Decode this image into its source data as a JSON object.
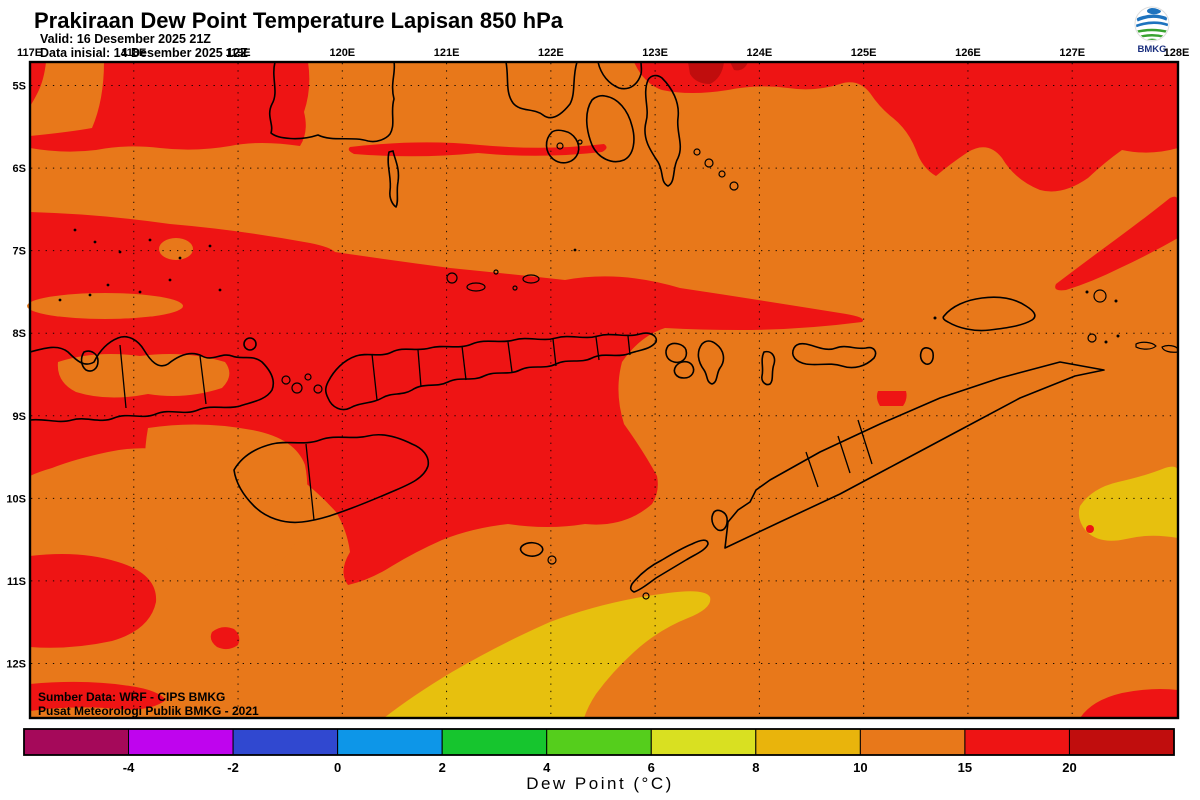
{
  "header": {
    "title": "Prakiraan Dew Point Temperature Lapisan 850 hPa",
    "valid_line": "Valid: 16 Desember 2025 21Z",
    "init_line": "Data inisial: 14 Desember 2025 12Z"
  },
  "logo": {
    "label": "BMKG"
  },
  "map": {
    "x_axis_labels": [
      "117E",
      "118E",
      "119E",
      "120E",
      "121E",
      "122E",
      "123E",
      "124E",
      "125E",
      "126E",
      "127E",
      "128E"
    ],
    "y_axis_labels": [
      "5S",
      "6S",
      "7S",
      "8S",
      "9S",
      "10S",
      "11S",
      "12S"
    ],
    "source_line1": "Sumber Data: WRF - CIPS BMKG",
    "source_line2": "Pusat Meteorologi Publik BMKG -  2021"
  },
  "colorbar": {
    "caption": "Dew Point (°C)",
    "tick_labels": [
      "-4",
      "-2",
      "0",
      "2",
      "4",
      "6",
      "8",
      "10",
      "15",
      "20"
    ],
    "segment_colors": [
      "#A5095A",
      "#BF04EE",
      "#3048D0",
      "#0D96E8",
      "#16C52E",
      "#55CE1C",
      "#D9E021",
      "#E9B40C",
      "#E8781A",
      "#EE1414",
      "#C00D0D"
    ]
  },
  "palette": {
    "base_orange": "#E8781A",
    "red": "#EE1414",
    "dark_red": "#C00D0D",
    "yellow": "#E7C00E",
    "coastline": "#000000",
    "logo_blue": "#1E73BE",
    "logo_green": "#38A32F",
    "logo_text": "#1A2F7E"
  }
}
